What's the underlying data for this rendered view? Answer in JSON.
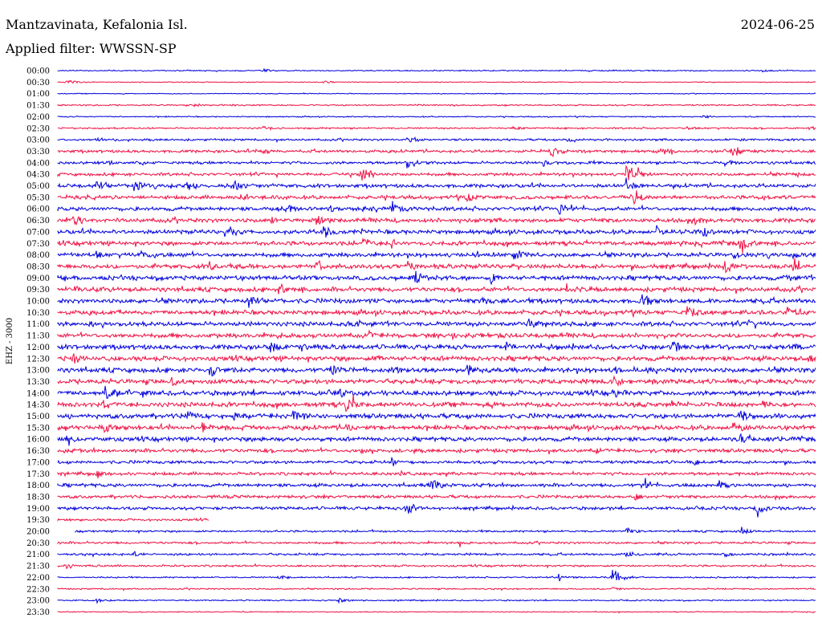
{
  "header": {
    "station": "Mantzavinata, Kefalonia Isl.",
    "date": "2024-06-25",
    "filter": "Applied filter: WWSSN-SP"
  },
  "channel_label": "EHZ - 3000",
  "colors": {
    "odd_trace": "#0000dd",
    "even_trace": "#ee1144",
    "text": "#000000",
    "background": "#ffffff"
  },
  "chart_data": {
    "type": "line",
    "title": "",
    "rows": [
      {
        "label": "00:00",
        "amp": 0.8,
        "end": 1.0,
        "events": [
          {
            "t": 0.27,
            "a": 3
          },
          {
            "t": 0.93,
            "a": 2
          }
        ]
      },
      {
        "label": "00:30",
        "amp": 0.6,
        "end": 1.0,
        "events": [
          {
            "t": 0.01,
            "a": 4
          },
          {
            "t": 0.35,
            "a": 2
          }
        ]
      },
      {
        "label": "01:00",
        "amp": 0.6,
        "end": 1.0,
        "events": []
      },
      {
        "label": "01:30",
        "amp": 1.0,
        "end": 1.0,
        "events": [
          {
            "t": 0.18,
            "a": 3
          },
          {
            "t": 0.47,
            "a": 2
          }
        ]
      },
      {
        "label": "02:00",
        "amp": 0.8,
        "end": 1.0,
        "events": [
          {
            "t": 0.85,
            "a": 3
          }
        ]
      },
      {
        "label": "02:30",
        "amp": 1.2,
        "end": 1.0,
        "events": [
          {
            "t": 0.27,
            "a": 4
          },
          {
            "t": 0.6,
            "a": 3
          },
          {
            "t": 0.83,
            "a": 3
          },
          {
            "t": 0.99,
            "a": 4
          }
        ]
      },
      {
        "label": "03:00",
        "amp": 1.5,
        "end": 1.0,
        "events": [
          {
            "t": 0.05,
            "a": 4
          },
          {
            "t": 0.46,
            "a": 6
          },
          {
            "t": 0.67,
            "a": 5
          },
          {
            "t": 0.9,
            "a": 4
          }
        ]
      },
      {
        "label": "03:30",
        "amp": 2.0,
        "end": 1.0,
        "events": [
          {
            "t": 0.27,
            "a": 6
          },
          {
            "t": 0.65,
            "a": 9
          },
          {
            "t": 0.8,
            "a": 6
          },
          {
            "t": 0.89,
            "a": 9
          }
        ]
      },
      {
        "label": "04:00",
        "amp": 2.0,
        "end": 1.0,
        "events": [
          {
            "t": 0.06,
            "a": 5
          },
          {
            "t": 0.46,
            "a": 8
          },
          {
            "t": 0.64,
            "a": 6
          },
          {
            "t": 0.88,
            "a": 6
          }
        ]
      },
      {
        "label": "04:30",
        "amp": 2.2,
        "end": 1.0,
        "events": [
          {
            "t": 0.4,
            "a": 12
          },
          {
            "t": 0.75,
            "a": 15
          },
          {
            "t": 0.97,
            "a": 5
          }
        ]
      },
      {
        "label": "05:00",
        "amp": 2.6,
        "end": 1.0,
        "events": [
          {
            "t": 0.05,
            "a": 9
          },
          {
            "t": 0.1,
            "a": 12
          },
          {
            "t": 0.17,
            "a": 9
          },
          {
            "t": 0.23,
            "a": 14
          },
          {
            "t": 0.75,
            "a": 12
          }
        ]
      },
      {
        "label": "05:30",
        "amp": 2.6,
        "end": 1.0,
        "events": [
          {
            "t": 0.24,
            "a": 7
          },
          {
            "t": 0.54,
            "a": 9
          },
          {
            "t": 0.76,
            "a": 12
          },
          {
            "t": 0.93,
            "a": 6
          }
        ]
      },
      {
        "label": "06:00",
        "amp": 2.8,
        "end": 1.0,
        "events": [
          {
            "t": 0.3,
            "a": 9
          },
          {
            "t": 0.36,
            "a": 6
          },
          {
            "t": 0.44,
            "a": 12
          },
          {
            "t": 0.66,
            "a": 11
          }
        ]
      },
      {
        "label": "06:30",
        "amp": 3.0,
        "end": 1.0,
        "events": [
          {
            "t": 0.02,
            "a": 9
          },
          {
            "t": 0.28,
            "a": 7
          },
          {
            "t": 0.34,
            "a": 9
          },
          {
            "t": 0.84,
            "a": 7
          }
        ]
      },
      {
        "label": "07:00",
        "amp": 3.0,
        "end": 1.0,
        "events": [
          {
            "t": 0.22,
            "a": 10
          },
          {
            "t": 0.35,
            "a": 11
          },
          {
            "t": 0.79,
            "a": 8
          },
          {
            "t": 0.85,
            "a": 9
          }
        ]
      },
      {
        "label": "07:30",
        "amp": 3.0,
        "end": 1.0,
        "events": [
          {
            "t": 0.4,
            "a": 10
          },
          {
            "t": 0.44,
            "a": 8
          },
          {
            "t": 0.9,
            "a": 12
          }
        ]
      },
      {
        "label": "08:00",
        "amp": 3.0,
        "end": 1.0,
        "events": [
          {
            "t": 0.05,
            "a": 6
          },
          {
            "t": 0.11,
            "a": 9
          },
          {
            "t": 0.6,
            "a": 12
          },
          {
            "t": 0.89,
            "a": 7
          },
          {
            "t": 0.97,
            "a": 6
          }
        ]
      },
      {
        "label": "08:30",
        "amp": 3.2,
        "end": 1.0,
        "events": [
          {
            "t": 0.2,
            "a": 7
          },
          {
            "t": 0.34,
            "a": 10
          },
          {
            "t": 0.46,
            "a": 12
          },
          {
            "t": 0.88,
            "a": 13
          },
          {
            "t": 0.97,
            "a": 8
          }
        ]
      },
      {
        "label": "09:00",
        "amp": 3.2,
        "end": 1.0,
        "events": [
          {
            "t": 0.0,
            "a": 7
          },
          {
            "t": 0.47,
            "a": 12
          },
          {
            "t": 0.57,
            "a": 10
          },
          {
            "t": 0.96,
            "a": 8
          }
        ]
      },
      {
        "label": "09:30",
        "amp": 3.2,
        "end": 1.0,
        "events": [
          {
            "t": 0.02,
            "a": 8
          },
          {
            "t": 0.29,
            "a": 10
          },
          {
            "t": 0.67,
            "a": 11
          }
        ]
      },
      {
        "label": "10:00",
        "amp": 3.2,
        "end": 1.0,
        "events": [
          {
            "t": 0.25,
            "a": 12
          },
          {
            "t": 0.37,
            "a": 6
          },
          {
            "t": 0.56,
            "a": 7
          },
          {
            "t": 0.77,
            "a": 12
          }
        ]
      },
      {
        "label": "10:30",
        "amp": 3.2,
        "end": 1.0,
        "events": [
          {
            "t": 0.06,
            "a": 6
          },
          {
            "t": 0.83,
            "a": 12
          },
          {
            "t": 0.96,
            "a": 12
          }
        ]
      },
      {
        "label": "11:00",
        "amp": 3.2,
        "end": 1.0,
        "events": [
          {
            "t": 0.04,
            "a": 6
          },
          {
            "t": 0.39,
            "a": 8
          },
          {
            "t": 0.62,
            "a": 10
          },
          {
            "t": 0.91,
            "a": 7
          }
        ]
      },
      {
        "label": "11:30",
        "amp": 3.2,
        "end": 1.0,
        "events": [
          {
            "t": 0.29,
            "a": 6
          },
          {
            "t": 0.41,
            "a": 7
          },
          {
            "t": 0.52,
            "a": 6
          },
          {
            "t": 0.8,
            "a": 6
          }
        ]
      },
      {
        "label": "12:00",
        "amp": 3.4,
        "end": 1.0,
        "events": [
          {
            "t": 0.28,
            "a": 11
          },
          {
            "t": 0.32,
            "a": 10
          },
          {
            "t": 0.59,
            "a": 12
          },
          {
            "t": 0.81,
            "a": 10
          },
          {
            "t": 0.97,
            "a": 7
          }
        ]
      },
      {
        "label": "12:30",
        "amp": 3.4,
        "end": 1.0,
        "events": [
          {
            "t": 0.02,
            "a": 9
          },
          {
            "t": 0.42,
            "a": 8
          },
          {
            "t": 0.99,
            "a": 9
          }
        ]
      },
      {
        "label": "13:00",
        "amp": 3.4,
        "end": 1.0,
        "events": [
          {
            "t": 0.2,
            "a": 12
          },
          {
            "t": 0.36,
            "a": 10
          },
          {
            "t": 0.44,
            "a": 9
          },
          {
            "t": 0.54,
            "a": 11
          },
          {
            "t": 0.73,
            "a": 8
          }
        ]
      },
      {
        "label": "13:30",
        "amp": 3.4,
        "end": 1.0,
        "events": [
          {
            "t": 0.15,
            "a": 10
          },
          {
            "t": 0.73,
            "a": 12
          }
        ]
      },
      {
        "label": "14:00",
        "amp": 3.4,
        "end": 1.0,
        "events": [
          {
            "t": 0.06,
            "a": 12
          },
          {
            "t": 0.37,
            "a": 9
          },
          {
            "t": 0.73,
            "a": 10
          }
        ]
      },
      {
        "label": "14:30",
        "amp": 3.4,
        "end": 1.0,
        "events": [
          {
            "t": 0.38,
            "a": 16
          },
          {
            "t": 0.06,
            "a": 7
          },
          {
            "t": 0.93,
            "a": 8
          }
        ]
      },
      {
        "label": "15:00",
        "amp": 3.4,
        "end": 1.0,
        "events": [
          {
            "t": 0.17,
            "a": 10
          },
          {
            "t": 0.23,
            "a": 8
          },
          {
            "t": 0.31,
            "a": 11
          },
          {
            "t": 0.9,
            "a": 13
          }
        ]
      },
      {
        "label": "15:30",
        "amp": 3.2,
        "end": 1.0,
        "events": [
          {
            "t": 0.06,
            "a": 9
          },
          {
            "t": 0.19,
            "a": 10
          },
          {
            "t": 0.38,
            "a": 7
          },
          {
            "t": 0.89,
            "a": 10
          }
        ]
      },
      {
        "label": "16:00",
        "amp": 3.0,
        "end": 1.0,
        "events": [
          {
            "t": 0.01,
            "a": 7
          },
          {
            "t": 0.27,
            "a": 6
          },
          {
            "t": 0.9,
            "a": 9
          }
        ]
      },
      {
        "label": "16:30",
        "amp": 2.6,
        "end": 1.0,
        "events": [
          {
            "t": 0.4,
            "a": 5
          },
          {
            "t": 0.71,
            "a": 5
          }
        ]
      },
      {
        "label": "17:00",
        "amp": 2.2,
        "end": 1.0,
        "events": [
          {
            "t": 0.44,
            "a": 6
          },
          {
            "t": 0.84,
            "a": 6
          }
        ]
      },
      {
        "label": "17:30",
        "amp": 2.2,
        "end": 1.0,
        "events": [
          {
            "t": 0.05,
            "a": 5
          },
          {
            "t": 0.45,
            "a": 6
          }
        ]
      },
      {
        "label": "18:00",
        "amp": 2.4,
        "end": 1.0,
        "events": [
          {
            "t": 0.49,
            "a": 11
          },
          {
            "t": 0.77,
            "a": 8
          },
          {
            "t": 0.87,
            "a": 10
          }
        ]
      },
      {
        "label": "18:30",
        "amp": 2.2,
        "end": 1.0,
        "events": [
          {
            "t": 0.76,
            "a": 6
          }
        ]
      },
      {
        "label": "19:00",
        "amp": 2.2,
        "end": 1.0,
        "events": [
          {
            "t": 0.46,
            "a": 12
          },
          {
            "t": 0.92,
            "a": 10
          }
        ]
      },
      {
        "label": "19:30",
        "amp": 1.6,
        "end": 0.2,
        "events": []
      },
      {
        "label": "20:00",
        "amp": 1.4,
        "end": 1.0,
        "events": [
          {
            "t": 0.75,
            "a": 5
          },
          {
            "t": 0.9,
            "a": 5
          }
        ]
      },
      {
        "label": "20:30",
        "amp": 1.6,
        "end": 1.0,
        "events": [
          {
            "t": 0.53,
            "a": 4
          }
        ]
      },
      {
        "label": "21:00",
        "amp": 1.6,
        "end": 1.0,
        "events": [
          {
            "t": 0.1,
            "a": 4
          },
          {
            "t": 0.75,
            "a": 5
          },
          {
            "t": 0.88,
            "a": 4
          }
        ]
      },
      {
        "label": "21:30",
        "amp": 1.4,
        "end": 1.0,
        "events": [
          {
            "t": 0.01,
            "a": 6
          }
        ]
      },
      {
        "label": "22:00",
        "amp": 1.0,
        "end": 1.0,
        "events": [
          {
            "t": 0.29,
            "a": 4
          },
          {
            "t": 0.66,
            "a": 6
          },
          {
            "t": 0.73,
            "a": 14
          }
        ]
      },
      {
        "label": "22:30",
        "amp": 1.0,
        "end": 1.0,
        "events": [
          {
            "t": 0.73,
            "a": 3
          }
        ]
      },
      {
        "label": "23:00",
        "amp": 0.9,
        "end": 1.0,
        "events": [
          {
            "t": 0.05,
            "a": 4
          },
          {
            "t": 0.37,
            "a": 4
          }
        ]
      },
      {
        "label": "23:30",
        "amp": 0.7,
        "end": 1.0,
        "events": []
      }
    ]
  }
}
